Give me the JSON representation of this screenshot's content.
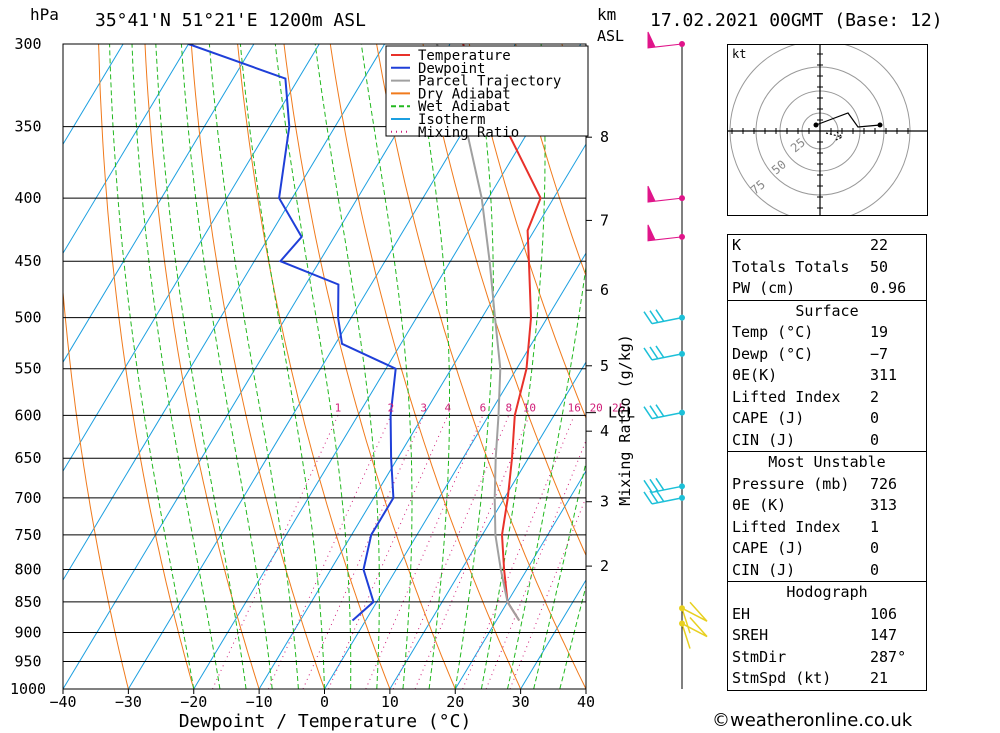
{
  "header": {
    "location": "35°41'N 51°21'E 1200m ASL",
    "datetime": "17.02.2021 00GMT (Base: 12)",
    "hpa_label": "hPa",
    "km_label": "km",
    "asl_label": "ASL",
    "copyright": "©weatheronline.co.uk"
  },
  "chart_data": {
    "type": "skew-t",
    "xlabel": "Dewpoint / Temperature (°C)",
    "ylabel_left": "hPa",
    "mixing_ratio_label": "Mixing Ratio (g/kg)",
    "x_ticks": [
      -40,
      -30,
      -20,
      -10,
      0,
      10,
      20,
      30,
      40
    ],
    "x_tick_labels": [
      "−40",
      "−30",
      "−20",
      "−10",
      "0",
      "10",
      "20",
      "30",
      "40"
    ],
    "pressure_levels": [
      300,
      350,
      400,
      450,
      500,
      550,
      600,
      650,
      700,
      750,
      800,
      850,
      900,
      950,
      1000
    ],
    "pressure_range": [
      300,
      1000
    ],
    "km_ticks": [
      {
        "label": "8",
        "p": 357
      },
      {
        "label": "7",
        "p": 417
      },
      {
        "label": "6",
        "p": 475
      },
      {
        "label": "5",
        "p": 547
      },
      {
        "label": "4",
        "p": 618
      },
      {
        "label": "3",
        "p": 705
      },
      {
        "label": "2",
        "p": 795
      }
    ],
    "lcl": {
      "label": "LCL",
      "p": 597
    },
    "mixing_ratios": [
      1,
      2,
      3,
      4,
      6,
      8,
      10,
      16,
      20,
      25
    ],
    "legend": [
      {
        "name": "Temperature",
        "color": "#e8312a"
      },
      {
        "name": "Dewpoint",
        "color": "#1f3fd8"
      },
      {
        "name": "Parcel Trajectory",
        "color": "#a0a0a0"
      },
      {
        "name": "Dry Adiabat",
        "color": "#f07a1c"
      },
      {
        "name": "Wet Adiabat",
        "color": "#22b81f"
      },
      {
        "name": "Isotherm",
        "color": "#1c9fe0"
      },
      {
        "name": "Mixing Ratio",
        "color": "#d0207a"
      }
    ],
    "series": [
      {
        "name": "Temperature",
        "points": [
          [
            880,
            23.5
          ],
          [
            850,
            20
          ],
          [
            800,
            16.5
          ],
          [
            750,
            13
          ],
          [
            700,
            10.5
          ],
          [
            650,
            7.5
          ],
          [
            600,
            4
          ],
          [
            550,
            1.5
          ],
          [
            500,
            -2.5
          ],
          [
            450,
            -8
          ],
          [
            425,
            -11
          ],
          [
            400,
            -12
          ],
          [
            350,
            -24
          ],
          [
            320,
            -33
          ],
          [
            300,
            -38
          ]
        ]
      },
      {
        "name": "Dewpoint",
        "points": [
          [
            880,
            -2
          ],
          [
            850,
            -0.5
          ],
          [
            800,
            -5
          ],
          [
            750,
            -7
          ],
          [
            700,
            -7
          ],
          [
            650,
            -11
          ],
          [
            600,
            -15
          ],
          [
            550,
            -18.5
          ],
          [
            525,
            -29
          ],
          [
            500,
            -32
          ],
          [
            470,
            -35
          ],
          [
            450,
            -46
          ],
          [
            430,
            -45
          ],
          [
            400,
            -52
          ],
          [
            350,
            -57
          ],
          [
            320,
            -62
          ],
          [
            300,
            -80
          ]
        ]
      },
      {
        "name": "Parcel Trajectory",
        "points": [
          [
            880,
            23.5
          ],
          [
            850,
            20
          ],
          [
            800,
            16
          ],
          [
            750,
            12
          ],
          [
            700,
            8.5
          ],
          [
            650,
            5
          ],
          [
            600,
            1.5
          ],
          [
            550,
            -2.5
          ],
          [
            500,
            -8
          ],
          [
            450,
            -14
          ],
          [
            400,
            -21
          ],
          [
            350,
            -30
          ],
          [
            300,
            -42
          ]
        ]
      }
    ],
    "wind_barbs": [
      {
        "p": 300,
        "color": "#e0158a",
        "type": "pennant"
      },
      {
        "p": 400,
        "color": "#e0158a",
        "type": "pennant"
      },
      {
        "p": 430,
        "color": "#e0158a",
        "type": "pennant"
      },
      {
        "p": 500,
        "color": "#1cc0d8",
        "type": "barbs"
      },
      {
        "p": 535,
        "color": "#1cc0d8",
        "type": "barbs"
      },
      {
        "p": 597,
        "color": "#1cc0d8",
        "type": "barbs"
      },
      {
        "p": 685,
        "color": "#1cc0d8",
        "type": "barbs"
      },
      {
        "p": 700,
        "color": "#1cc0d8",
        "type": "barbs"
      },
      {
        "p": 860,
        "color": "#e8d020",
        "type": "barbs"
      },
      {
        "p": 885,
        "color": "#e8d020",
        "type": "barbs"
      }
    ]
  },
  "hodograph": {
    "unit": "kt",
    "ring_labels": [
      "25",
      "50",
      "75"
    ]
  },
  "indices": {
    "general": [
      {
        "label": "K",
        "value": "22"
      },
      {
        "label": "Totals Totals",
        "value": "50"
      },
      {
        "label": "PW (cm)",
        "value": "0.96"
      }
    ],
    "surface": {
      "title": "Surface",
      "rows": [
        {
          "label": "Temp (°C)",
          "value": "19"
        },
        {
          "label": "Dewp (°C)",
          "value": "−7"
        },
        {
          "label": "θE(K)",
          "value": "311"
        },
        {
          "label": "Lifted Index",
          "value": "2"
        },
        {
          "label": "CAPE (J)",
          "value": "0"
        },
        {
          "label": "CIN (J)",
          "value": "0"
        }
      ]
    },
    "most_unstable": {
      "title": "Most Unstable",
      "rows": [
        {
          "label": "Pressure (mb)",
          "value": "726"
        },
        {
          "label": "θE (K)",
          "value": "313"
        },
        {
          "label": "Lifted Index",
          "value": "1"
        },
        {
          "label": "CAPE (J)",
          "value": "0"
        },
        {
          "label": "CIN (J)",
          "value": "0"
        }
      ]
    },
    "hodograph": {
      "title": "Hodograph",
      "rows": [
        {
          "label": "EH",
          "value": "106"
        },
        {
          "label": "SREH",
          "value": "147"
        },
        {
          "label": "StmDir",
          "value": "287°"
        },
        {
          "label": "StmSpd (kt)",
          "value": "21"
        }
      ]
    }
  }
}
